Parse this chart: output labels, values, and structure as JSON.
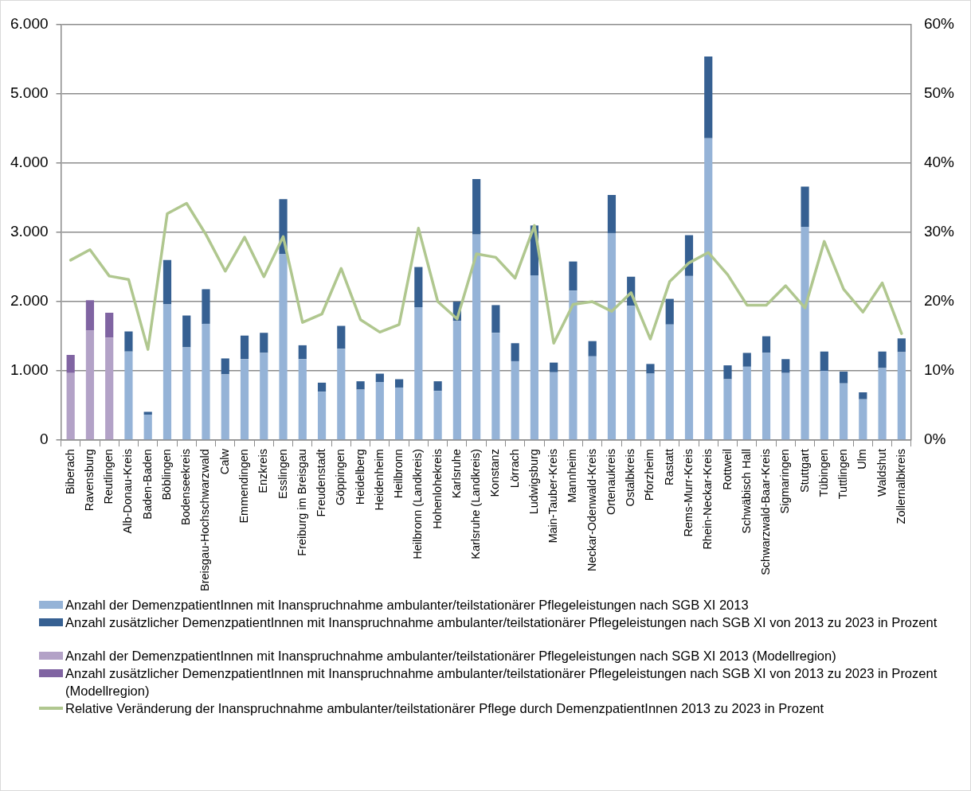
{
  "chart_data": {
    "type": "bar",
    "stacked": true,
    "grid": "y",
    "legend": "bottom",
    "categories": [
      "Biberach",
      "Ravensburg",
      "Reutlingen",
      "Alb-Donau-Kreis",
      "Baden-Baden",
      "Böblingen",
      "Bodenseekreis",
      "Breisgau-Hochschwarzwald",
      "Calw",
      "Emmendingen",
      "Enzkreis",
      "Esslingen",
      "Freiburg im Breisgau",
      "Freudenstadt",
      "Göppingen",
      "Heidelberg",
      "Heidenheim",
      "Heilbronn",
      "Heilbronn (Landkreis)",
      "Hohenlohekreis",
      "Karlsruhe",
      "Karlsruhe (Landkreis)",
      "Konstanz",
      "Lörrach",
      "Ludwigsburg",
      "Main-Tauber-Kreis",
      "Mannheim",
      "Neckar-Odenwald-Kreis",
      "Ortenaukreis",
      "Ostalbkreis",
      "Pforzheim",
      "Rastatt",
      "Rems-Murr-Kreis",
      "Rhein-Neckar-Kreis",
      "Rottweil",
      "Schwäbisch Hall",
      "Schwarzwald-Baar-Kreis",
      "Sigmaringen",
      "Stuttgart",
      "Tübingen",
      "Tuttlingen",
      "Ulm",
      "Waldshut",
      "Zollernalbkreis"
    ],
    "series": [
      {
        "name": "Anzahl der DemenzpatientInnen mit Inanspruchnahme ambulanter/teilstationärer Pflegeleistungen nach  SGB XI 2013",
        "color": "#95b3d7",
        "values": [
          null,
          null,
          null,
          1280,
          370,
          1960,
          1340,
          1680,
          950,
          1170,
          1260,
          2690,
          1170,
          700,
          1320,
          730,
          840,
          760,
          1920,
          710,
          1720,
          2970,
          1550,
          1140,
          2380,
          980,
          2160,
          1210,
          2990,
          1940,
          960,
          1670,
          2370,
          4360,
          880,
          1060,
          1260,
          970,
          3080,
          1000,
          820,
          590,
          1040,
          1270
        ]
      },
      {
        "name": "Anzahl zusätzlicher DemenzpatientInnen mit Inanspruchnahme ambulanter/teilstationärer Pflegeleistungen nach SGB XI von 2013 zu 2023 in Prozent",
        "color": "#366092",
        "values": [
          null,
          null,
          null,
          290,
          40,
          640,
          460,
          500,
          230,
          340,
          290,
          790,
          200,
          130,
          330,
          120,
          120,
          120,
          580,
          140,
          280,
          800,
          400,
          260,
          720,
          140,
          420,
          220,
          550,
          420,
          140,
          370,
          590,
          1180,
          200,
          200,
          240,
          200,
          580,
          280,
          170,
          100,
          240,
          200
        ]
      },
      {
        "name": "Anzahl der DemenzpatientInnen mit Inanspruchnahme ambulanter/teilstationärer Pflegeleistungen nach  SGB XI 2013 (Modellregion)",
        "color": "#b3a2c7",
        "values": [
          970,
          1580,
          1480,
          null,
          null,
          null,
          null,
          null,
          null,
          null,
          null,
          null,
          null,
          null,
          null,
          null,
          null,
          null,
          null,
          null,
          null,
          null,
          null,
          null,
          null,
          null,
          null,
          null,
          null,
          null,
          null,
          null,
          null,
          null,
          null,
          null,
          null,
          null,
          null,
          null,
          null,
          null,
          null,
          null
        ]
      },
      {
        "name": "Anzahl zusätzlicher DemenzpatientInnen mit Inanspruchnahme ambulanter/teilstationärer Pflegeleistungen nach SGB XI von 2013 zu 2023 in Prozent (Modellregion)",
        "color": "#8064a2",
        "values": [
          260,
          440,
          360,
          null,
          null,
          null,
          null,
          null,
          null,
          null,
          null,
          null,
          null,
          null,
          null,
          null,
          null,
          null,
          null,
          null,
          null,
          null,
          null,
          null,
          null,
          null,
          null,
          null,
          null,
          null,
          null,
          null,
          null,
          null,
          null,
          null,
          null,
          null,
          null,
          null,
          null,
          null,
          null,
          null
        ]
      },
      {
        "name": "Relative Veränderung der Inanspruchnahme ambulanter/teilstationärer Pflege durch DemenzpatientInnen 2013 zu 2023 in Prozent",
        "type": "line",
        "axis": "y2",
        "color": "#b0c78f",
        "values": [
          26,
          27.5,
          23.7,
          23.2,
          13.1,
          32.7,
          34.2,
          29.7,
          24.4,
          29.3,
          23.6,
          29.4,
          17,
          18.2,
          24.8,
          17.4,
          15.6,
          16.7,
          30.6,
          20,
          17.5,
          26.9,
          26.4,
          23.4,
          31,
          14,
          19.6,
          20,
          18.6,
          21.3,
          14.6,
          22.9,
          25.6,
          27.1,
          23.9,
          19.5,
          19.5,
          22.3,
          19.1,
          28.7,
          21.8,
          18.5,
          22.7,
          15.4
        ]
      }
    ],
    "ylim": [
      0,
      6000
    ],
    "yticks": [
      {
        "value": 0,
        "label": "0"
      },
      {
        "value": 1000,
        "label": "1.000"
      },
      {
        "value": 2000,
        "label": "2.000"
      },
      {
        "value": 3000,
        "label": "3.000"
      },
      {
        "value": 4000,
        "label": "4.000"
      },
      {
        "value": 5000,
        "label": "5.000"
      },
      {
        "value": 6000,
        "label": "6.000"
      }
    ],
    "y2lim": [
      0,
      60
    ],
    "y2ticks": [
      {
        "value": 0,
        "label": "0%"
      },
      {
        "value": 10,
        "label": "10%"
      },
      {
        "value": 20,
        "label": "20%"
      },
      {
        "value": 30,
        "label": "30%"
      },
      {
        "value": 40,
        "label": "40%"
      },
      {
        "value": 50,
        "label": "50%"
      },
      {
        "value": 60,
        "label": "60%"
      }
    ]
  }
}
